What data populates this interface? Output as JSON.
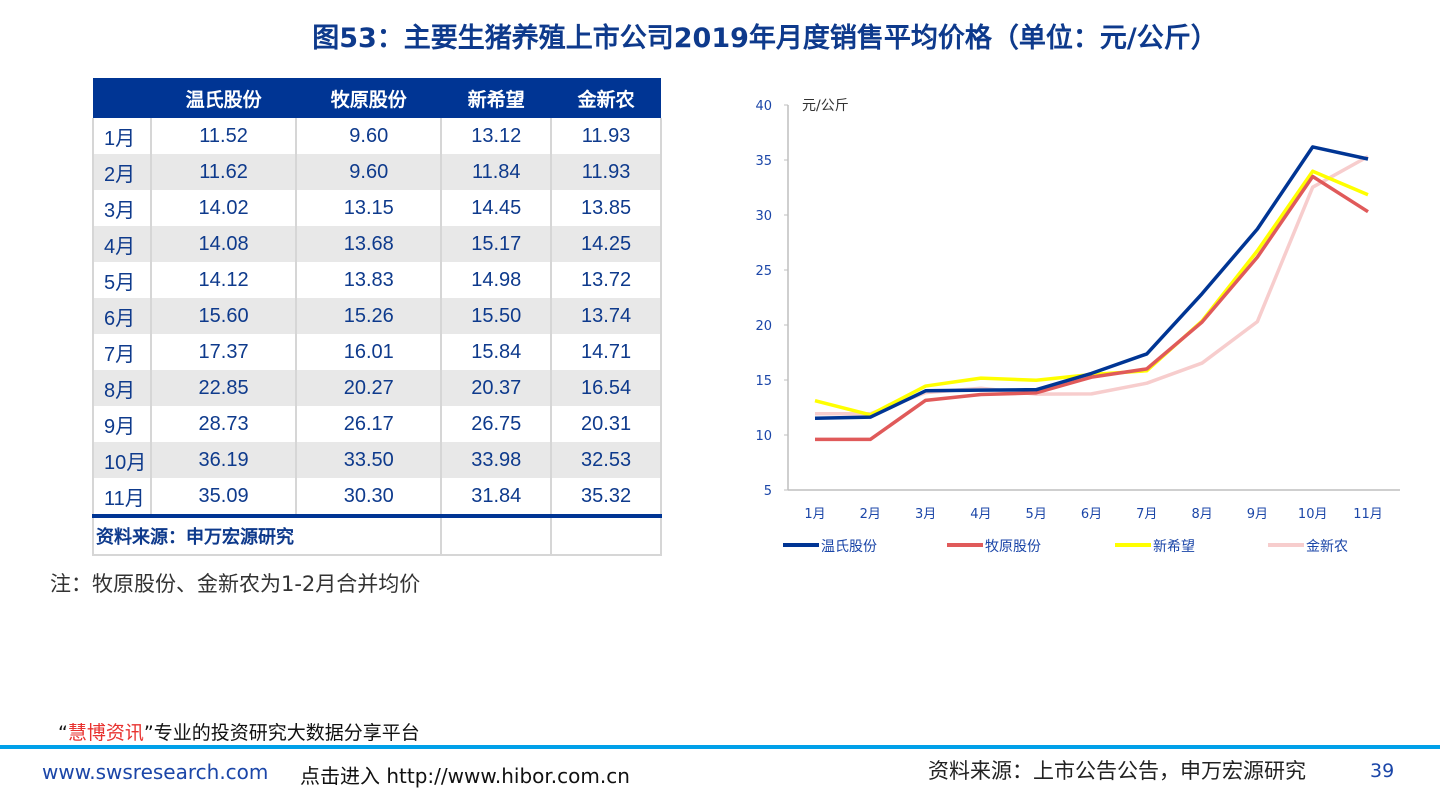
{
  "title": "图53：主要生猪养殖上市公司2019年月度销售平均价格（单位：元/公斤）",
  "table": {
    "headers": [
      "",
      "温氏股份",
      "牧原股份",
      "新希望",
      "金新农"
    ],
    "rows": [
      [
        "1月",
        "11.52",
        "9.60",
        "13.12",
        "11.93"
      ],
      [
        "2月",
        "11.62",
        "9.60",
        "11.84",
        "11.93"
      ],
      [
        "3月",
        "14.02",
        "13.15",
        "14.45",
        "13.85"
      ],
      [
        "4月",
        "14.08",
        "13.68",
        "15.17",
        "14.25"
      ],
      [
        "5月",
        "14.12",
        "13.83",
        "14.98",
        "13.72"
      ],
      [
        "6月",
        "15.60",
        "15.26",
        "15.50",
        "13.74"
      ],
      [
        "7月",
        "17.37",
        "16.01",
        "15.84",
        "14.71"
      ],
      [
        "8月",
        "22.85",
        "20.27",
        "20.37",
        "16.54"
      ],
      [
        "9月",
        "28.73",
        "26.17",
        "26.75",
        "20.31"
      ],
      [
        "10月",
        "36.19",
        "33.50",
        "33.98",
        "32.53"
      ],
      [
        "11月",
        "35.09",
        "30.30",
        "31.84",
        "35.32"
      ]
    ],
    "source": "资料来源：申万宏源研究"
  },
  "note": "注：牧原股份、金新农为1-2月合并均价",
  "chart_data": {
    "type": "line",
    "ylabel": "元/公斤",
    "ylim": [
      5,
      40
    ],
    "yticks": [
      "5",
      "10",
      "15",
      "20",
      "25",
      "30",
      "35",
      "40"
    ],
    "categories": [
      "1月",
      "2月",
      "3月",
      "4月",
      "5月",
      "6月",
      "7月",
      "8月",
      "9月",
      "10月",
      "11月"
    ],
    "legend_position": "bottom",
    "grid": false,
    "series": [
      {
        "name": "温氏股份",
        "color": "#003594",
        "values": [
          11.52,
          11.62,
          14.02,
          14.08,
          14.12,
          15.6,
          17.37,
          22.85,
          28.73,
          36.19,
          35.09
        ]
      },
      {
        "name": "牧原股份",
        "color": "#e05a5a",
        "values": [
          9.6,
          9.6,
          13.15,
          13.68,
          13.83,
          15.26,
          16.01,
          20.27,
          26.17,
          33.5,
          30.3
        ]
      },
      {
        "name": "新希望",
        "color": "#ffff00",
        "values": [
          13.12,
          11.84,
          14.45,
          15.17,
          14.98,
          15.5,
          15.84,
          20.37,
          26.75,
          33.98,
          31.84
        ]
      },
      {
        "name": "金新农",
        "color": "#f7cdcd",
        "values": [
          11.93,
          11.93,
          13.85,
          14.25,
          13.72,
          13.74,
          14.71,
          16.54,
          20.31,
          32.53,
          35.32
        ]
      }
    ]
  },
  "footer": {
    "tagline_quote_open": "“",
    "tagline_brand": "慧博资讯",
    "tagline_quote_close": "”",
    "tagline_rest": "专业的投资研究大数据分享平台",
    "watermark_url": "www.swsresearch.com",
    "link_text": "点击进入 http://www.hibor.com.cn",
    "source": "资料来源：上市公告公告，申万宏源研究",
    "page": "39"
  }
}
